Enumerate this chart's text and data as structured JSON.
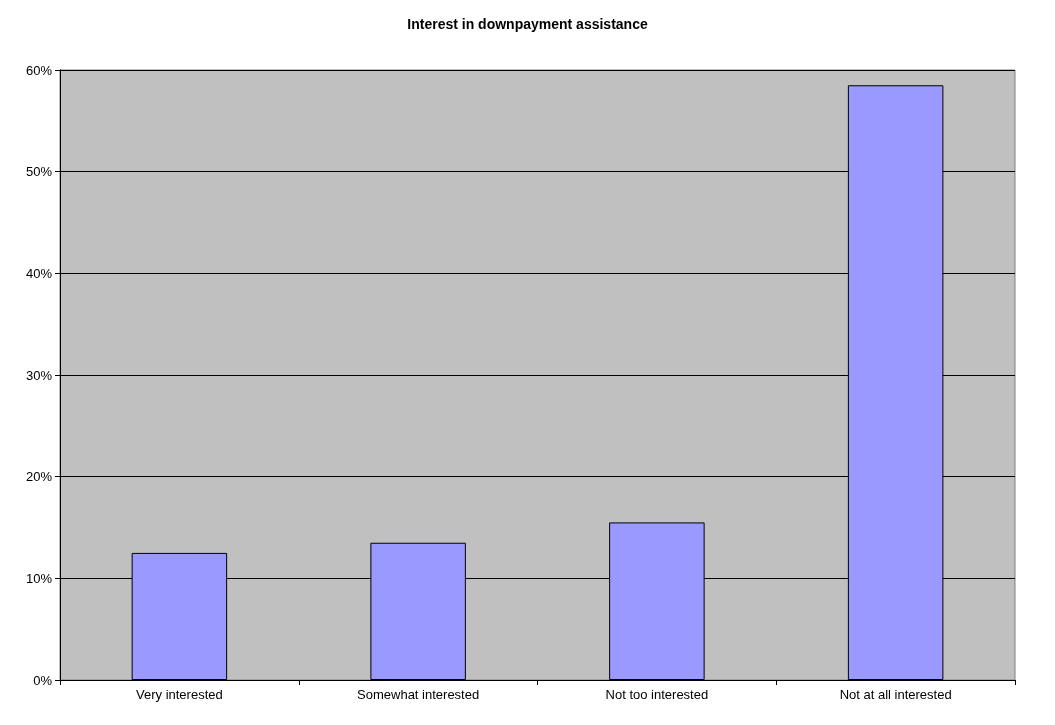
{
  "chart_data": {
    "type": "bar",
    "title": "Interest in downpayment assistance",
    "categories": [
      "Very interested",
      "Somewhat interested",
      "Not too interested",
      "Not at all interested"
    ],
    "values": [
      12.5,
      13.5,
      15.5,
      58.5
    ],
    "color": "#9999ff",
    "ylim": [
      0,
      60
    ],
    "yticks": [
      {
        "value": 0,
        "label": "0%"
      },
      {
        "value": 10,
        "label": "10%"
      },
      {
        "value": 20,
        "label": "20%"
      },
      {
        "value": 30,
        "label": "30%"
      },
      {
        "value": 40,
        "label": "40%"
      },
      {
        "value": 50,
        "label": "50%"
      },
      {
        "value": 60,
        "label": "60%"
      }
    ],
    "grid": "y"
  }
}
